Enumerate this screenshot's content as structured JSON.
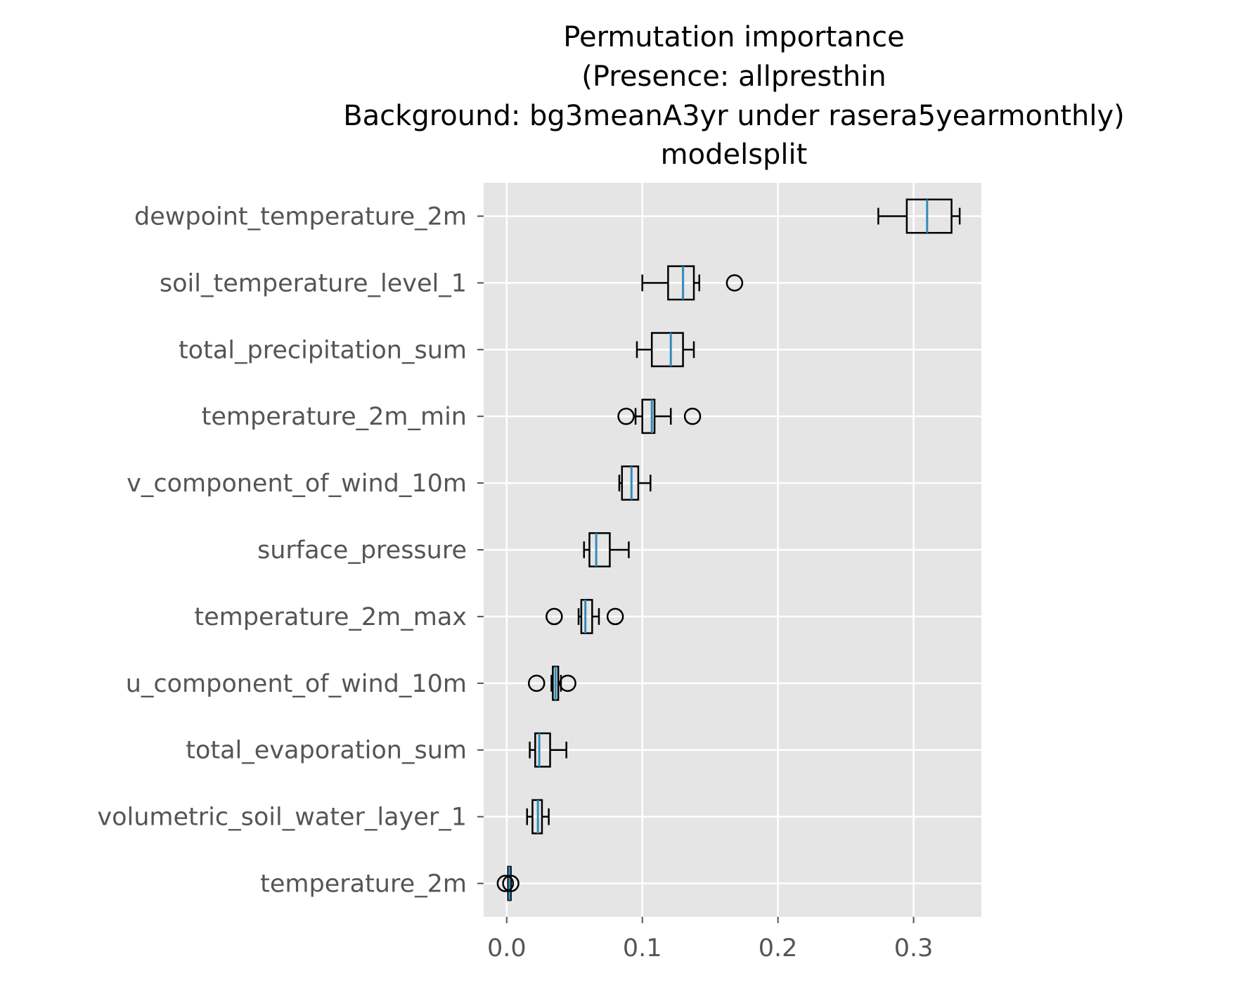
{
  "chart_data": {
    "type": "boxplot",
    "orientation": "horizontal",
    "title_lines": [
      "Permutation importance",
      "(Presence: allpresthin",
      "Background: bg3meanA3yr under rasera5yearmonthly)",
      "modelsplit"
    ],
    "xlabel": "",
    "ylabel": "",
    "xlim": [
      -0.017,
      0.35
    ],
    "xticks": [
      0.0,
      0.1,
      0.2,
      0.3
    ],
    "xtick_labels": [
      "0.0",
      "0.1",
      "0.2",
      "0.3"
    ],
    "grid": true,
    "style": "ggplot",
    "colors": {
      "plot_background": "#e5e5e5",
      "grid": "#ffffff",
      "box_edge": "#000000",
      "median": "#348abd",
      "tick_label": "#555555",
      "title": "#000000"
    },
    "features": [
      {
        "name": "dewpoint_temperature_2m",
        "whisker_low": 0.274,
        "q1": 0.295,
        "median": 0.31,
        "q3": 0.328,
        "whisker_high": 0.334,
        "outliers": []
      },
      {
        "name": "soil_temperature_level_1",
        "whisker_low": 0.1,
        "q1": 0.119,
        "median": 0.13,
        "q3": 0.138,
        "whisker_high": 0.142,
        "outliers": [
          0.168
        ]
      },
      {
        "name": "total_precipitation_sum",
        "whisker_low": 0.096,
        "q1": 0.107,
        "median": 0.121,
        "q3": 0.13,
        "whisker_high": 0.138,
        "outliers": []
      },
      {
        "name": "temperature_2m_min",
        "whisker_low": 0.095,
        "q1": 0.1,
        "median": 0.107,
        "q3": 0.109,
        "whisker_high": 0.121,
        "outliers": [
          0.088,
          0.137
        ]
      },
      {
        "name": "v_component_of_wind_10m",
        "whisker_low": 0.083,
        "q1": 0.085,
        "median": 0.092,
        "q3": 0.097,
        "whisker_high": 0.106,
        "outliers": []
      },
      {
        "name": "surface_pressure",
        "whisker_low": 0.057,
        "q1": 0.061,
        "median": 0.066,
        "q3": 0.076,
        "whisker_high": 0.09,
        "outliers": []
      },
      {
        "name": "temperature_2m_max",
        "whisker_low": 0.053,
        "q1": 0.055,
        "median": 0.058,
        "q3": 0.063,
        "whisker_high": 0.068,
        "outliers": [
          0.035,
          0.08
        ]
      },
      {
        "name": "u_component_of_wind_10m",
        "whisker_low": 0.033,
        "q1": 0.034,
        "median": 0.036,
        "q3": 0.038,
        "whisker_high": 0.04,
        "outliers": [
          0.022,
          0.045
        ]
      },
      {
        "name": "total_evaporation_sum",
        "whisker_low": 0.017,
        "q1": 0.021,
        "median": 0.024,
        "q3": 0.032,
        "whisker_high": 0.044,
        "outliers": []
      },
      {
        "name": "volumetric_soil_water_layer_1",
        "whisker_low": 0.015,
        "q1": 0.019,
        "median": 0.023,
        "q3": 0.026,
        "whisker_high": 0.031,
        "outliers": []
      },
      {
        "name": "temperature_2m",
        "whisker_low": 0.001,
        "q1": 0.001,
        "median": 0.002,
        "q3": 0.003,
        "whisker_high": 0.003,
        "outliers": [
          -0.001,
          0.003
        ]
      }
    ]
  }
}
